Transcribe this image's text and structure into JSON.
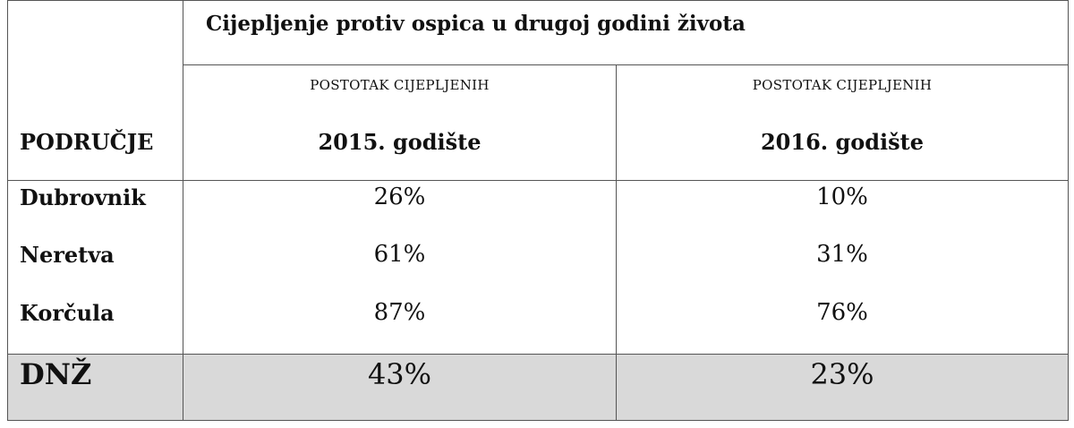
{
  "table": {
    "title": "Cijepljenje protiv ospica u drugoj godini života",
    "subheaders": [
      "POSTOTAK CIJEPLJENIH",
      "POSTOTAK CIJEPLJENIH"
    ],
    "area_header": "PODRUČJE",
    "year_headers": [
      "2015. godište",
      "2016. godište"
    ],
    "rows": [
      {
        "area": "Dubrovnik",
        "v2015": "26%",
        "v2016": "10%"
      },
      {
        "area": "Neretva",
        "v2015": "61%",
        "v2016": "31%"
      },
      {
        "area": "Korčula",
        "v2015": "87%",
        "v2016": "76%"
      }
    ],
    "total": {
      "area": "DNŽ",
      "v2015": "43%",
      "v2016": "23%"
    },
    "colors": {
      "total_row_bg": "#d9d9d9",
      "border": "#555555"
    }
  }
}
